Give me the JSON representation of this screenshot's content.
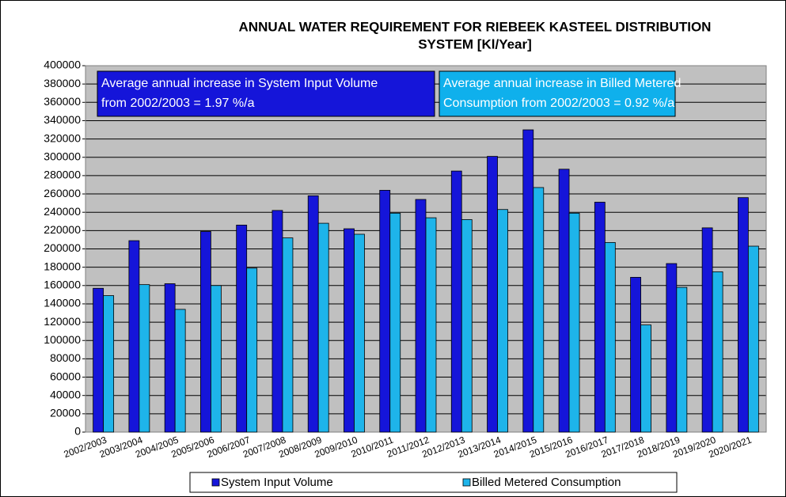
{
  "chart_data": {
    "type": "bar",
    "title": [
      "ANNUAL WATER REQUIREMENT FOR RIEBEEK KASTEEL DISTRIBUTION",
      "SYSTEM [Kl/Year]"
    ],
    "annotations": [
      {
        "lines": [
          "Average annual increase in System Input Volume",
          "from 2002/2003 = 1.97 %/a"
        ],
        "color": "#1515d9"
      },
      {
        "lines": [
          "Average annual increase in Billed Metered",
          "Consumption from 2002/2003 = 0.92 %/a"
        ],
        "color": "#0fb0ec"
      }
    ],
    "categories": [
      "2002/2003",
      "2003/2004",
      "2004/2005",
      "2005/2006",
      "2006/2007",
      "2007/2008",
      "2008/2009",
      "2009/2010",
      "2010/2011",
      "2011/2012",
      "2012/2013",
      "2013/2014",
      "2014/2015",
      "2015/2016",
      "2016/2017",
      "2017/2018",
      "2018/2019",
      "2019/2020",
      "2020/2021"
    ],
    "series": [
      {
        "name": "System Input Volume",
        "color": "#1515d9",
        "values": [
          157000,
          209000,
          162000,
          219000,
          226000,
          242000,
          258000,
          222000,
          264000,
          254000,
          285000,
          301000,
          330000,
          287000,
          251000,
          169000,
          184000,
          223000,
          256000
        ]
      },
      {
        "name": "Billed Metered Consumption",
        "color": "#1eb4ea",
        "values": [
          149000,
          161000,
          134000,
          160000,
          179000,
          212000,
          228000,
          216000,
          239000,
          234000,
          232000,
          243000,
          267000,
          239000,
          207000,
          117000,
          158000,
          175000,
          203000
        ]
      }
    ],
    "ylim": [
      0,
      400000
    ],
    "yticks": [
      0,
      20000,
      40000,
      60000,
      80000,
      100000,
      120000,
      140000,
      160000,
      180000,
      200000,
      220000,
      240000,
      260000,
      280000,
      300000,
      320000,
      340000,
      360000,
      380000,
      400000
    ],
    "grid": true,
    "legend": "bottom"
  }
}
